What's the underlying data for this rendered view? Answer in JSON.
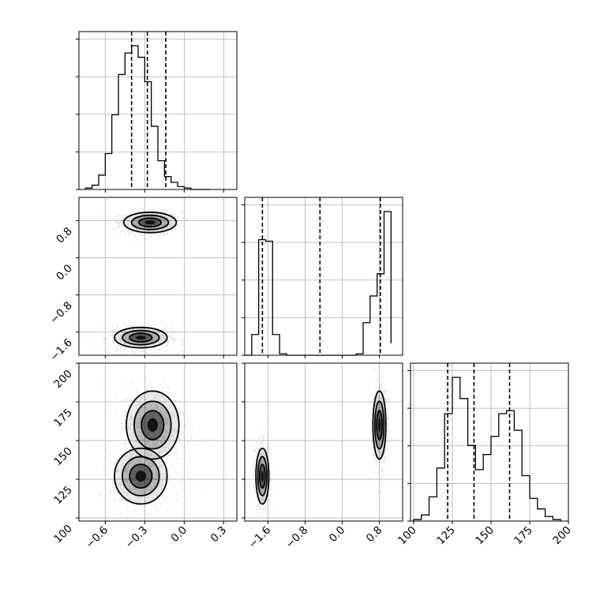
{
  "chart_data": {
    "type": "corner",
    "grid": true,
    "parameters": [
      {
        "key": "p0",
        "range": [
          -0.8,
          0.4
        ],
        "ticks": [
          -0.6,
          -0.3,
          0.0,
          0.3
        ],
        "tick_labels": [
          "−0.6",
          "−0.3",
          "0.0",
          "0.3"
        ]
      },
      {
        "key": "p1",
        "range": [
          -2.1,
          1.3
        ],
        "ticks": [
          -1.6,
          -0.8,
          0.0,
          0.8
        ],
        "tick_labels": [
          "−1.6",
          "−0.8",
          "0.0",
          "0.8"
        ]
      },
      {
        "key": "p2",
        "range": [
          98,
          200
        ],
        "ticks": [
          100,
          125,
          150,
          175,
          200
        ],
        "tick_labels": [
          "100",
          "125",
          "150",
          "175",
          "200"
        ]
      }
    ],
    "histograms": [
      {
        "param": "p0",
        "bins": [
          -0.75,
          -0.7,
          -0.65,
          -0.6,
          -0.55,
          -0.5,
          -0.45,
          -0.4,
          -0.35,
          -0.3,
          -0.25,
          -0.2,
          -0.15,
          -0.1,
          -0.05,
          0.0,
          0.05,
          0.1,
          0.15,
          0.2
        ],
        "counts": [
          0.01,
          0.03,
          0.1,
          0.25,
          0.52,
          0.8,
          0.95,
          1.0,
          0.92,
          0.75,
          0.44,
          0.2,
          0.09,
          0.05,
          0.02,
          0.01,
          0.0,
          0.0,
          0.0
        ],
        "quantiles": [
          -0.4,
          -0.28,
          -0.14
        ]
      },
      {
        "param": "p1",
        "bins": [
          -2.1,
          -1.95,
          -1.8,
          -1.65,
          -1.5,
          -1.35,
          -1.2,
          -0.15,
          0.0,
          0.15,
          0.3,
          0.45,
          0.6,
          0.75,
          0.9,
          1.05
        ],
        "counts": [
          0.0,
          0.14,
          0.78,
          0.77,
          0.14,
          0.01,
          0.0,
          0.0,
          0.0,
          0.0,
          0.01,
          0.22,
          0.4,
          0.55,
          0.97,
          0.08
        ],
        "quantiles": [
          -1.72,
          -0.48,
          0.82
        ]
      },
      {
        "param": "p2",
        "bins": [
          100,
          105,
          110,
          115,
          120,
          125,
          130,
          135,
          140,
          145,
          150,
          155,
          160,
          165,
          170,
          175,
          180,
          185,
          190,
          195
        ],
        "counts": [
          0.01,
          0.04,
          0.16,
          0.35,
          0.71,
          0.95,
          0.81,
          0.5,
          0.34,
          0.44,
          0.56,
          0.71,
          0.73,
          0.6,
          0.3,
          0.15,
          0.08,
          0.03,
          0.01
        ],
        "quantiles": [
          122,
          139,
          162
        ]
      }
    ],
    "pairs": [
      {
        "x": "p0",
        "y": "p1",
        "modes": [
          {
            "cx": -0.26,
            "cy": 0.76,
            "sx": 0.1,
            "sy": 0.11
          },
          {
            "cx": -0.33,
            "cy": -1.72,
            "sx": 0.1,
            "sy": 0.11
          }
        ]
      },
      {
        "x": "p0",
        "y": "p2",
        "modes": [
          {
            "cx": -0.24,
            "cy": 160,
            "sx": 0.1,
            "sy": 11
          },
          {
            "cx": -0.33,
            "cy": 127,
            "sx": 0.1,
            "sy": 9
          }
        ]
      },
      {
        "x": "p1",
        "y": "p2",
        "modes": [
          {
            "cx": 0.8,
            "cy": 160,
            "sx": 0.07,
            "sy": 11
          },
          {
            "cx": -1.72,
            "cy": 127,
            "sx": 0.07,
            "sy": 9
          }
        ]
      }
    ]
  }
}
